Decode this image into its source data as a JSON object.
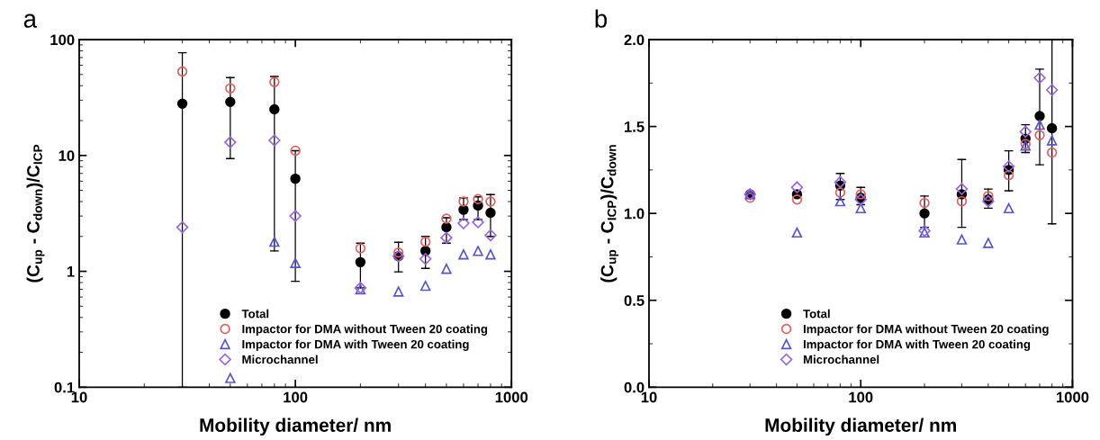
{
  "chart_data": [
    {
      "type": "scatter",
      "title": "a",
      "xlabel": "Mobility diameter/ nm",
      "ylabel": "(C$_{up}$ - C$_{down}$)/C$_{ICP}$",
      "log": "xy",
      "xlim": [
        10,
        1000
      ],
      "xticks": [
        10,
        100,
        1000
      ],
      "ylim": [
        0.1,
        100
      ],
      "yticks": [
        0.1,
        1,
        10,
        100
      ],
      "x": [
        30,
        50,
        80,
        100,
        200,
        300,
        400,
        500,
        600,
        700,
        800
      ],
      "legend": "bottom right",
      "grid": false,
      "series": [
        {
          "name": "Total",
          "color": "#000000",
          "marker": "circle",
          "values": [
            28,
            29,
            25,
            6.3,
            1.2,
            1.35,
            1.5,
            2.4,
            3.4,
            3.7,
            3.2
          ],
          "errors": [
            [
              0.1,
              77
            ],
            [
              9.4,
              47
            ],
            [
              1.5,
              48
            ],
            [
              0.82,
              11
            ],
            [
              0.72,
              1.75
            ],
            [
              0.99,
              1.78
            ],
            [
              1.06,
              2.0
            ],
            [
              1.75,
              2.9
            ],
            [
              2.8,
              4.3
            ],
            [
              2.8,
              4.4
            ],
            [
              2.0,
              4.6
            ]
          ]
        },
        {
          "name": "Impactor for DMA without Tween 20 coating",
          "color": "#e06060",
          "marker": "circle_open",
          "values": [
            53,
            38,
            43,
            11,
            1.58,
            1.45,
            1.8,
            2.85,
            4.0,
            4.2,
            4.0
          ]
        },
        {
          "name": "Impactor for DMA with Tween 20 coating",
          "color": "#5555cc",
          "marker": "triangle",
          "values": [
            null,
            0.12,
            1.8,
            1.18,
            0.7,
            0.67,
            0.75,
            1.05,
            1.4,
            1.5,
            1.4
          ]
        },
        {
          "name": "Microchannel",
          "color": "#9966dd",
          "marker": "diamond",
          "values": [
            2.4,
            13,
            13.5,
            3.0,
            0.72,
            1.35,
            1.28,
            1.95,
            2.6,
            2.65,
            2.05
          ]
        }
      ]
    },
    {
      "type": "scatter",
      "title": "b",
      "xlabel": "Mobility diameter/ nm",
      "ylabel": "(C$_{up}$ - C$_{ICP}$)/C$_{down}$",
      "log": "x",
      "xlim": [
        10,
        1000
      ],
      "xticks": [
        10,
        100,
        1000
      ],
      "ylim": [
        0,
        2
      ],
      "yticks": [
        {
          "value": 0,
          "label": "0.0"
        },
        0.5,
        {
          "value": 1,
          "label": "1.0"
        },
        1.5,
        {
          "value": 2,
          "label": "2.0"
        }
      ],
      "x": [
        30,
        50,
        80,
        100,
        200,
        300,
        400,
        500,
        600,
        700,
        800
      ],
      "legend": "bottom right",
      "grid": false,
      "series": [
        {
          "name": "Total",
          "color": "#000000",
          "marker": "circle",
          "values": [
            1.11,
            1.11,
            1.16,
            1.09,
            1.0,
            1.11,
            1.08,
            1.25,
            1.43,
            1.56,
            1.49
          ],
          "errors": [
            null,
            null,
            [
              1.08,
              1.23
            ],
            [
              1.05,
              1.15
            ],
            [
              0.92,
              1.1
            ],
            [
              0.92,
              1.31
            ],
            [
              1.03,
              1.14
            ],
            [
              1.13,
              1.36
            ],
            [
              1.35,
              1.51
            ],
            [
              1.28,
              1.83
            ],
            [
              0.94,
              2.0
            ]
          ]
        },
        {
          "name": "Impactor for DMA without Tween 20 coating",
          "color": "#e06060",
          "marker": "circle_open",
          "values": [
            1.09,
            1.08,
            1.12,
            1.11,
            1.06,
            1.07,
            1.1,
            1.22,
            1.4,
            1.45,
            1.35
          ]
        },
        {
          "name": "Impactor for DMA with Tween 20 coating",
          "color": "#5555cc",
          "marker": "triangle",
          "values": [
            1.11,
            0.89,
            1.07,
            1.03,
            0.89,
            0.85,
            0.83,
            1.03,
            1.39,
            1.51,
            1.42
          ]
        },
        {
          "name": "Microchannel",
          "color": "#9966dd",
          "marker": "diamond",
          "values": [
            1.11,
            1.15,
            1.18,
            1.08,
            0.9,
            1.14,
            1.07,
            1.27,
            1.47,
            1.78,
            1.71
          ]
        }
      ]
    }
  ]
}
